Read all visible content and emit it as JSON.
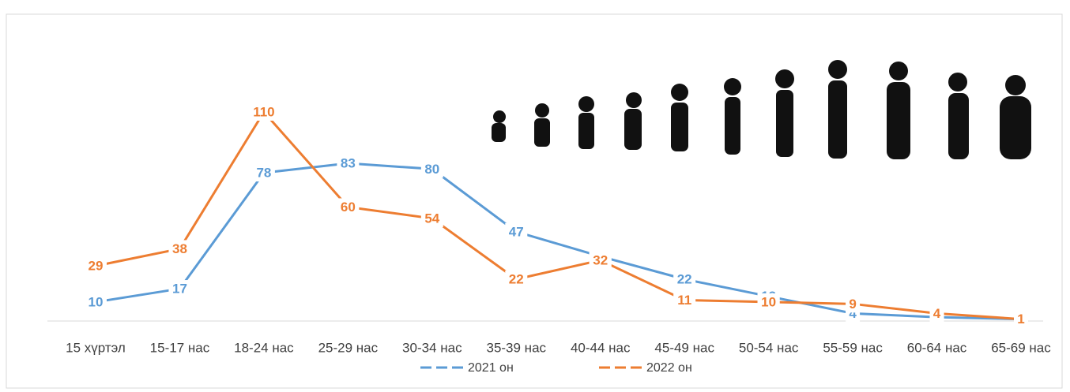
{
  "chart_data": {
    "type": "line",
    "categories": [
      "15 хүртэл",
      "15-17 нас",
      "18-24 нас",
      "25-29 нас",
      "30-34 нас",
      "35-39 нас",
      "40-44 нас",
      "45-49 нас",
      "50-54 нас",
      "55-59 нас",
      "60-64 нас",
      "65-69 нас"
    ],
    "series": [
      {
        "name": "2021 он",
        "color": "#5b9bd5",
        "values": [
          10,
          17,
          78,
          83,
          80,
          47,
          34,
          22,
          13,
          4,
          2,
          1
        ]
      },
      {
        "name": "2022 он",
        "color": "#ed7d31",
        "values": [
          29,
          38,
          110,
          60,
          54,
          22,
          32,
          11,
          10,
          9,
          4,
          1
        ]
      }
    ],
    "legend": "bottom"
  }
}
